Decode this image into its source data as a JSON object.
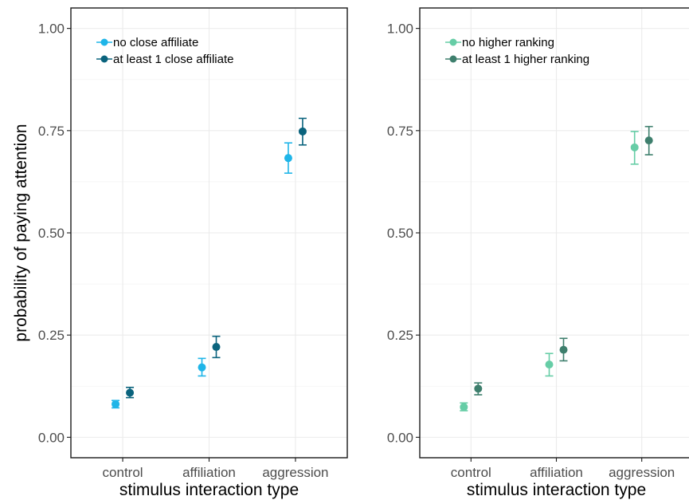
{
  "figure": {
    "ylabel": "probability of paying attention"
  },
  "chart_data": [
    {
      "type": "scatter",
      "title": "",
      "xlabel": "stimulus interaction type",
      "ylabel": "probability of paying attention",
      "categories": [
        "control",
        "affiliation",
        "aggression"
      ],
      "ylim": [
        -0.05,
        1.05
      ],
      "yticks": [
        0.0,
        0.25,
        0.5,
        0.75,
        1.0
      ],
      "ytick_labels": [
        "0.00",
        "0.25",
        "0.50",
        "0.75",
        "1.00"
      ],
      "grid": true,
      "error_bars": true,
      "legend_position": "top-left",
      "series": [
        {
          "name": "no close affiliate",
          "color": "#1fb5e8",
          "values": [
            0.081,
            0.171,
            0.683
          ],
          "lower": [
            0.072,
            0.15,
            0.646
          ],
          "upper": [
            0.09,
            0.193,
            0.72
          ]
        },
        {
          "name": "at least 1 close affiliate",
          "color": "#0a637d",
          "values": [
            0.109,
            0.221,
            0.748
          ],
          "lower": [
            0.097,
            0.195,
            0.715
          ],
          "upper": [
            0.122,
            0.247,
            0.78
          ]
        }
      ]
    },
    {
      "type": "scatter",
      "title": "",
      "xlabel": "stimulus interaction type",
      "ylabel": "",
      "categories": [
        "control",
        "affiliation",
        "aggression"
      ],
      "ylim": [
        -0.05,
        1.05
      ],
      "yticks": [
        0.0,
        0.25,
        0.5,
        0.75,
        1.0
      ],
      "ytick_labels": [
        "0.00",
        "0.25",
        "0.50",
        "0.75",
        "1.00"
      ],
      "grid": true,
      "error_bars": true,
      "legend_position": "top-left",
      "series": [
        {
          "name": "no higher ranking",
          "color": "#66cda6",
          "values": [
            0.074,
            0.178,
            0.709
          ],
          "lower": [
            0.065,
            0.15,
            0.668
          ],
          "upper": [
            0.084,
            0.205,
            0.748
          ]
        },
        {
          "name": "at least 1 higher ranking",
          "color": "#3e7f6d",
          "values": [
            0.119,
            0.214,
            0.726
          ],
          "lower": [
            0.104,
            0.187,
            0.691
          ],
          "upper": [
            0.133,
            0.242,
            0.76
          ]
        }
      ]
    }
  ]
}
